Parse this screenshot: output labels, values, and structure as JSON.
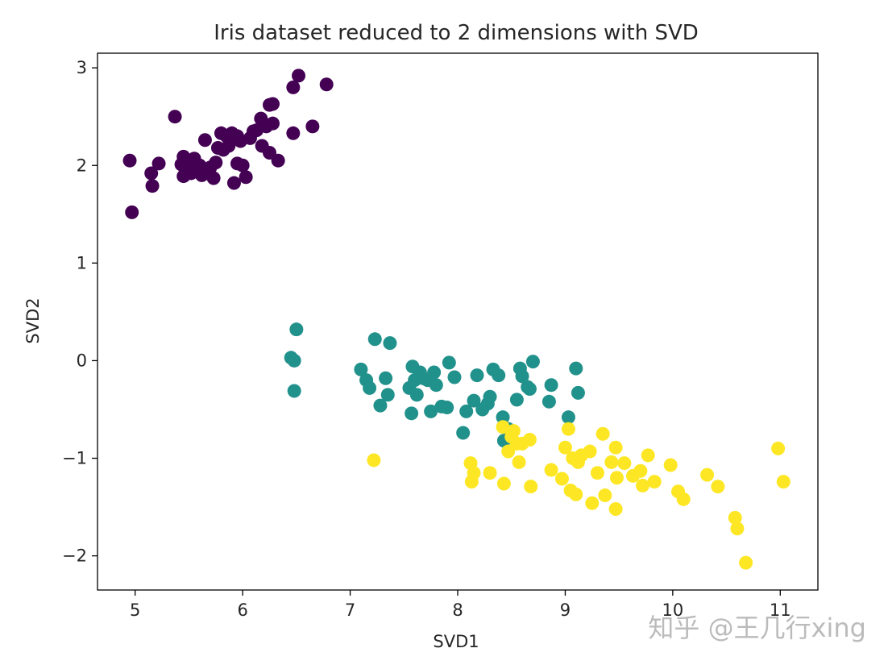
{
  "chart_data": {
    "type": "scatter",
    "title": "Iris dataset reduced to 2 dimensions with SVD",
    "xlabel": "SVD1",
    "ylabel": "SVD2",
    "xlim": [
      4.65,
      11.35
    ],
    "ylim": [
      -2.35,
      3.15
    ],
    "xticks": [
      5,
      6,
      7,
      8,
      9,
      10,
      11
    ],
    "yticks": [
      -2,
      -1,
      0,
      1,
      2,
      3
    ],
    "xtick_labels": [
      "5",
      "6",
      "7",
      "8",
      "9",
      "10",
      "11"
    ],
    "ytick_labels": [
      "−2",
      "−1",
      "0",
      "1",
      "2",
      "3"
    ],
    "grid": false,
    "series": [
      {
        "color": "#440154",
        "points": [
          [
            4.95,
            2.05
          ],
          [
            4.97,
            1.52
          ],
          [
            5.15,
            1.92
          ],
          [
            5.16,
            1.79
          ],
          [
            5.22,
            2.02
          ],
          [
            5.37,
            2.5
          ],
          [
            5.43,
            2.01
          ],
          [
            5.45,
            1.89
          ],
          [
            5.45,
            2.09
          ],
          [
            5.48,
            1.98
          ],
          [
            5.5,
            2.05
          ],
          [
            5.52,
            1.92
          ],
          [
            5.55,
            2.07
          ],
          [
            5.57,
            1.95
          ],
          [
            5.6,
            2.0
          ],
          [
            5.62,
            1.9
          ],
          [
            5.65,
            2.26
          ],
          [
            5.67,
            1.92
          ],
          [
            5.7,
            1.98
          ],
          [
            5.73,
            1.87
          ],
          [
            5.75,
            2.03
          ],
          [
            5.77,
            2.18
          ],
          [
            5.8,
            2.33
          ],
          [
            5.82,
            2.16
          ],
          [
            5.85,
            2.3
          ],
          [
            5.87,
            2.2
          ],
          [
            5.9,
            2.33
          ],
          [
            5.92,
            1.82
          ],
          [
            5.95,
            2.3
          ],
          [
            5.95,
            2.02
          ],
          [
            5.98,
            2.25
          ],
          [
            6.0,
            2.0
          ],
          [
            6.03,
            1.88
          ],
          [
            6.07,
            2.28
          ],
          [
            6.1,
            2.35
          ],
          [
            6.13,
            2.36
          ],
          [
            6.17,
            2.48
          ],
          [
            6.18,
            2.2
          ],
          [
            6.22,
            2.4
          ],
          [
            6.25,
            2.13
          ],
          [
            6.25,
            2.62
          ],
          [
            6.28,
            2.63
          ],
          [
            6.28,
            2.43
          ],
          [
            6.33,
            2.05
          ],
          [
            6.47,
            2.8
          ],
          [
            6.47,
            2.33
          ],
          [
            6.52,
            2.92
          ],
          [
            6.65,
            2.4
          ],
          [
            6.78,
            2.83
          ]
        ]
      },
      {
        "color": "#21918c",
        "points": [
          [
            6.45,
            0.03
          ],
          [
            6.48,
            0.0
          ],
          [
            6.48,
            -0.31
          ],
          [
            6.5,
            0.32
          ],
          [
            7.1,
            -0.09
          ],
          [
            7.15,
            -0.2
          ],
          [
            7.18,
            -0.28
          ],
          [
            7.23,
            0.22
          ],
          [
            7.28,
            -0.46
          ],
          [
            7.33,
            -0.18
          ],
          [
            7.35,
            -0.35
          ],
          [
            7.37,
            0.18
          ],
          [
            7.55,
            -0.28
          ],
          [
            7.57,
            -0.54
          ],
          [
            7.58,
            -0.06
          ],
          [
            7.6,
            -0.2
          ],
          [
            7.62,
            -0.35
          ],
          [
            7.65,
            -0.12
          ],
          [
            7.68,
            -0.18
          ],
          [
            7.72,
            -0.2
          ],
          [
            7.75,
            -0.52
          ],
          [
            7.78,
            -0.12
          ],
          [
            7.8,
            -0.25
          ],
          [
            7.85,
            -0.47
          ],
          [
            7.9,
            -0.48
          ],
          [
            7.92,
            -0.02
          ],
          [
            7.97,
            -0.17
          ],
          [
            8.05,
            -0.74
          ],
          [
            8.08,
            -0.52
          ],
          [
            8.15,
            -0.41
          ],
          [
            8.18,
            -0.15
          ],
          [
            8.23,
            -0.5
          ],
          [
            8.28,
            -0.44
          ],
          [
            8.3,
            -0.37
          ],
          [
            8.33,
            -0.09
          ],
          [
            8.38,
            -0.15
          ],
          [
            8.42,
            -0.58
          ],
          [
            8.43,
            -0.82
          ],
          [
            8.47,
            -0.7
          ],
          [
            8.55,
            -0.4
          ],
          [
            8.58,
            -0.08
          ],
          [
            8.6,
            -0.16
          ],
          [
            8.65,
            -0.27
          ],
          [
            8.67,
            -0.29
          ],
          [
            8.7,
            -0.01
          ],
          [
            8.85,
            -0.42
          ],
          [
            8.87,
            -0.25
          ],
          [
            9.03,
            -0.58
          ],
          [
            9.1,
            -0.08
          ],
          [
            9.12,
            -0.33
          ]
        ]
      },
      {
        "color": "#fde725",
        "points": [
          [
            7.22,
            -1.02
          ],
          [
            8.12,
            -1.05
          ],
          [
            8.13,
            -1.24
          ],
          [
            8.15,
            -1.15
          ],
          [
            8.3,
            -1.15
          ],
          [
            8.42,
            -0.68
          ],
          [
            8.43,
            -1.26
          ],
          [
            8.47,
            -0.93
          ],
          [
            8.5,
            -0.78
          ],
          [
            8.52,
            -0.72
          ],
          [
            8.55,
            -0.85
          ],
          [
            8.57,
            -1.04
          ],
          [
            8.6,
            -0.85
          ],
          [
            8.67,
            -0.81
          ],
          [
            8.68,
            -1.29
          ],
          [
            8.87,
            -1.12
          ],
          [
            8.97,
            -1.21
          ],
          [
            9.0,
            -0.89
          ],
          [
            9.03,
            -0.7
          ],
          [
            9.05,
            -1.33
          ],
          [
            9.07,
            -1.0
          ],
          [
            9.1,
            -1.37
          ],
          [
            9.12,
            -1.04
          ],
          [
            9.15,
            -0.97
          ],
          [
            9.23,
            -0.93
          ],
          [
            9.25,
            -1.46
          ],
          [
            9.3,
            -1.15
          ],
          [
            9.35,
            -0.75
          ],
          [
            9.37,
            -1.38
          ],
          [
            9.43,
            -1.04
          ],
          [
            9.47,
            -0.89
          ],
          [
            9.47,
            -1.52
          ],
          [
            9.48,
            -1.2
          ],
          [
            9.55,
            -1.05
          ],
          [
            9.63,
            -1.18
          ],
          [
            9.7,
            -1.13
          ],
          [
            9.72,
            -1.28
          ],
          [
            9.77,
            -0.97
          ],
          [
            9.83,
            -1.24
          ],
          [
            9.98,
            -1.07
          ],
          [
            10.05,
            -1.34
          ],
          [
            10.1,
            -1.42
          ],
          [
            10.32,
            -1.17
          ],
          [
            10.42,
            -1.29
          ],
          [
            10.58,
            -1.61
          ],
          [
            10.6,
            -1.72
          ],
          [
            10.68,
            -2.07
          ],
          [
            10.98,
            -0.9
          ],
          [
            11.03,
            -1.24
          ]
        ]
      }
    ]
  },
  "watermark": {
    "text": "知乎 @王几行xing"
  }
}
